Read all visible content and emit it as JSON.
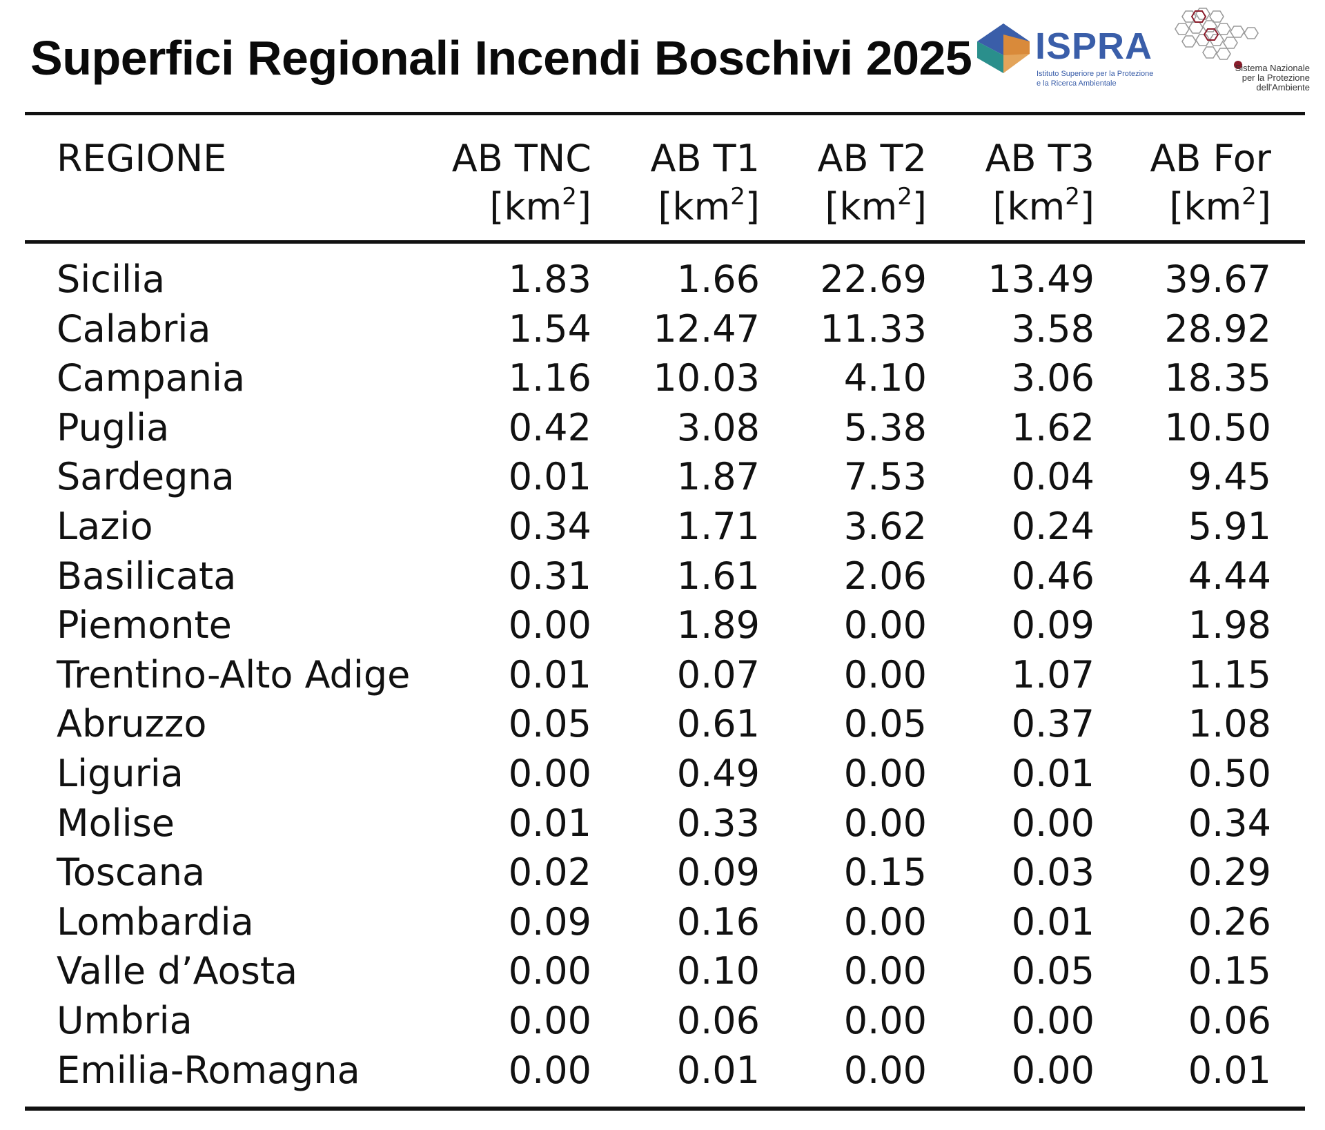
{
  "title": "Superfici Regionali Incendi Boschivi 2025",
  "logos": {
    "ispra": {
      "name": "ISPRA",
      "sub_line1": "Istituto Superiore per la Protezione",
      "sub_line2": "e la Ricerca Ambientale",
      "colors": {
        "blue": "#3a5ea9",
        "orange": "#d98a3a",
        "teal": "#2a8f8c"
      }
    },
    "snpa": {
      "line1": "Sistema Nazionale",
      "line2": "per la Protezione",
      "line3": "dell'Ambiente",
      "color": "#8a1c2b"
    }
  },
  "table": {
    "headers": [
      {
        "line1": "REGIONE",
        "line2": ""
      },
      {
        "line1": "AB TNC",
        "line2": "[km",
        "sup": "2",
        "close": "]"
      },
      {
        "line1": "AB T1",
        "line2": "[km",
        "sup": "2",
        "close": "]"
      },
      {
        "line1": "AB T2",
        "line2": "[km",
        "sup": "2",
        "close": "]"
      },
      {
        "line1": "AB T3",
        "line2": "[km",
        "sup": "2",
        "close": "]"
      },
      {
        "line1": "AB For",
        "line2": "[km",
        "sup": "2",
        "close": "]"
      }
    ],
    "rows": [
      [
        "Sicilia",
        "1.83",
        "1.66",
        "22.69",
        "13.49",
        "39.67"
      ],
      [
        "Calabria",
        "1.54",
        "12.47",
        "11.33",
        "3.58",
        "28.92"
      ],
      [
        "Campania",
        "1.16",
        "10.03",
        "4.10",
        "3.06",
        "18.35"
      ],
      [
        "Puglia",
        "0.42",
        "3.08",
        "5.38",
        "1.62",
        "10.50"
      ],
      [
        "Sardegna",
        "0.01",
        "1.87",
        "7.53",
        "0.04",
        "9.45"
      ],
      [
        "Lazio",
        "0.34",
        "1.71",
        "3.62",
        "0.24",
        "5.91"
      ],
      [
        "Basilicata",
        "0.31",
        "1.61",
        "2.06",
        "0.46",
        "4.44"
      ],
      [
        "Piemonte",
        "0.00",
        "1.89",
        "0.00",
        "0.09",
        "1.98"
      ],
      [
        "Trentino-Alto Adige",
        "0.01",
        "0.07",
        "0.00",
        "1.07",
        "1.15"
      ],
      [
        "Abruzzo",
        "0.05",
        "0.61",
        "0.05",
        "0.37",
        "1.08"
      ],
      [
        "Liguria",
        "0.00",
        "0.49",
        "0.00",
        "0.01",
        "0.50"
      ],
      [
        "Molise",
        "0.01",
        "0.33",
        "0.00",
        "0.00",
        "0.34"
      ],
      [
        "Toscana",
        "0.02",
        "0.09",
        "0.15",
        "0.03",
        "0.29"
      ],
      [
        "Lombardia",
        "0.09",
        "0.16",
        "0.00",
        "0.01",
        "0.26"
      ],
      [
        "Valle d’Aosta",
        "0.00",
        "0.10",
        "0.00",
        "0.05",
        "0.15"
      ],
      [
        "Umbria",
        "0.00",
        "0.06",
        "0.00",
        "0.00",
        "0.06"
      ],
      [
        "Emilia-Romagna",
        "0.00",
        "0.01",
        "0.00",
        "0.00",
        "0.01"
      ]
    ]
  }
}
